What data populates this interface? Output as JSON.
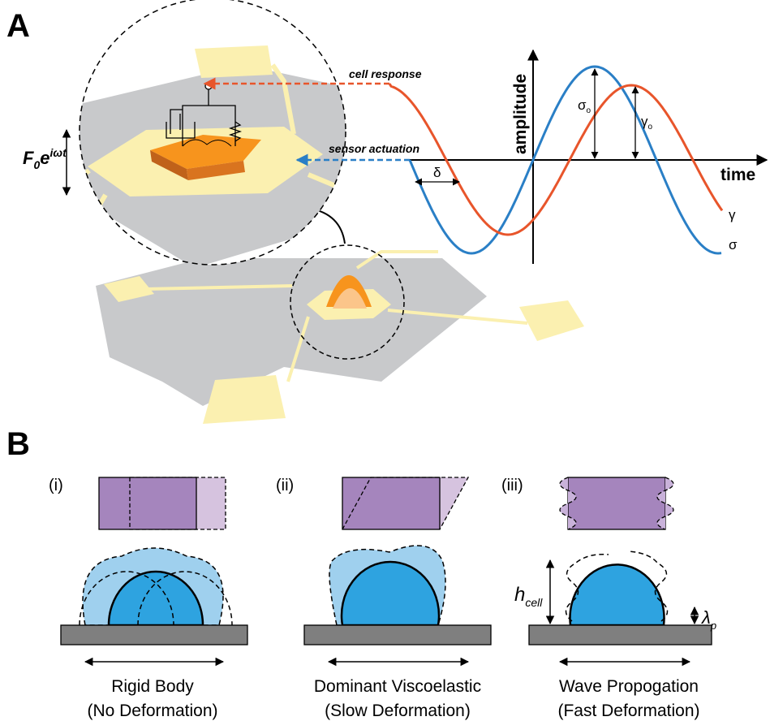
{
  "panel_a": {
    "label": "A",
    "cell_response": "cell response",
    "sensor_actuation": "sensor actuation",
    "force": {
      "symbol": "F",
      "sub": "0",
      "base": "e",
      "sup": "iωt"
    },
    "axis_y": "amplitude",
    "axis_x": "time",
    "sigma_o": {
      "symbol": "σ",
      "sub": "o"
    },
    "gamma_o": {
      "symbol": "γ",
      "sub": "o"
    },
    "delta": "δ",
    "gamma": "γ",
    "sigma": "σ"
  },
  "panel_b": {
    "label": "B",
    "cases": [
      {
        "index": "(i)",
        "title": "Rigid Body",
        "subtitle": "(No Deformation)"
      },
      {
        "index": "(ii)",
        "title": "Dominant Viscoelastic",
        "subtitle": "(Slow Deformation)"
      },
      {
        "index": "(iii)",
        "title": "Wave Propogation",
        "subtitle": "(Fast Deformation)"
      }
    ],
    "h_cell": {
      "symbol": "h",
      "sub": "cell"
    },
    "lambda_p": {
      "symbol": "λ",
      "sub": "p"
    }
  }
}
